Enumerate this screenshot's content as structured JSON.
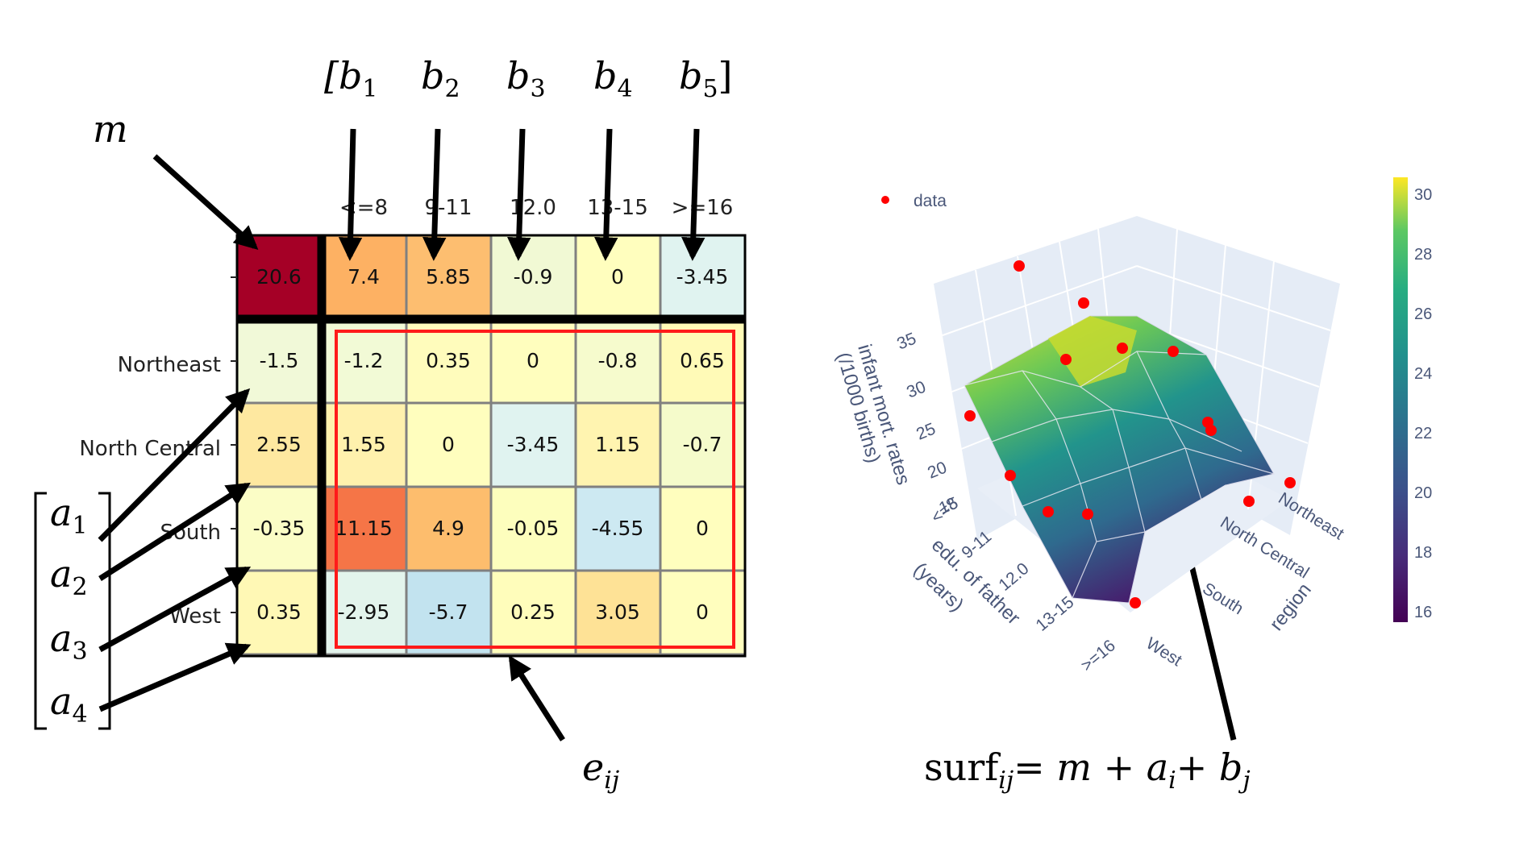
{
  "table": {
    "columns": [
      "<=8",
      "9-11",
      "12.0",
      "13-15",
      ">=16"
    ],
    "overall": "20.6",
    "col_effects": [
      "7.4",
      "5.85",
      "-0.9",
      "0",
      "-3.45"
    ],
    "rows": [
      {
        "label": "Northeast",
        "effect": "-1.5",
        "residuals": [
          "-1.2",
          "0.35",
          "0",
          "-0.8",
          "0.65"
        ]
      },
      {
        "label": "North Central",
        "effect": "2.55",
        "residuals": [
          "1.55",
          "0",
          "-3.45",
          "1.15",
          "-0.7"
        ]
      },
      {
        "label": "South",
        "effect": "-0.35",
        "residuals": [
          "11.15",
          "4.9",
          "-0.05",
          "-4.55",
          "0"
        ]
      },
      {
        "label": "West",
        "effect": "0.35",
        "residuals": [
          "-2.95",
          "-5.7",
          "0.25",
          "3.05",
          "0"
        ]
      }
    ],
    "colors": {
      "overall": "#a50026",
      "col_effects": [
        "#fdb163",
        "#fdbe70",
        "#f1f9d4",
        "#fffebe",
        "#e0f3f0"
      ],
      "row_effects": [
        "#f1f9d8",
        "#fee8a0",
        "#fbfdc6",
        "#fff8b5"
      ],
      "residuals": [
        [
          "#f2fad6",
          "#fffcbc",
          "#fffebe",
          "#f6fbcd",
          "#fffab7"
        ],
        [
          "#fff1ad",
          "#fffebe",
          "#e0f3f0",
          "#fff4b0",
          "#f5fbcb"
        ],
        [
          "#f57547",
          "#fdbd6d",
          "#fdfebd",
          "#cde9f2",
          "#fffebe"
        ],
        [
          "#e3f4ec",
          "#c2e3ef",
          "#fffdbb",
          "#fee296",
          "#fffebe"
        ]
      ]
    }
  },
  "annotations": {
    "m": "m",
    "b_labels": [
      "[b",
      "b",
      "b",
      "b",
      "b"
    ],
    "b_subs": [
      "1",
      "2",
      "3",
      "4",
      "5"
    ],
    "b_close": "]",
    "a_labels": [
      "a",
      "a",
      "a",
      "a"
    ],
    "a_subs": [
      "1",
      "2",
      "3",
      "4"
    ],
    "e": "e",
    "e_sub": "ij",
    "surf_lhs": "surf",
    "surf_sub": "ij",
    "surf_rhs": "= m + a",
    "surf_i": "i",
    "surf_plus": "+ b",
    "surf_j": "j"
  },
  "plot3d": {
    "legend_label": "data",
    "z_title_line1": "infant mort. rates",
    "z_title_line2": "(/1000 births)",
    "z_ticks": [
      "35",
      "30",
      "25",
      "20",
      "15"
    ],
    "x_title_line1": "edu. of father",
    "x_title_line2": "(years)",
    "x_ticks": [
      "<=8",
      "9-11",
      "12.0",
      "13-15",
      ">=16"
    ],
    "y_title": "region",
    "y_ticks": [
      "Northeast",
      "North Central",
      "South",
      "West"
    ],
    "colorbar_ticks": [
      "30",
      "28",
      "26",
      "24",
      "22",
      "20",
      "18",
      "16"
    ],
    "colors": {
      "data": "#ff0000",
      "grid": "#ffffff",
      "pane": "#e5ecf6"
    }
  }
}
